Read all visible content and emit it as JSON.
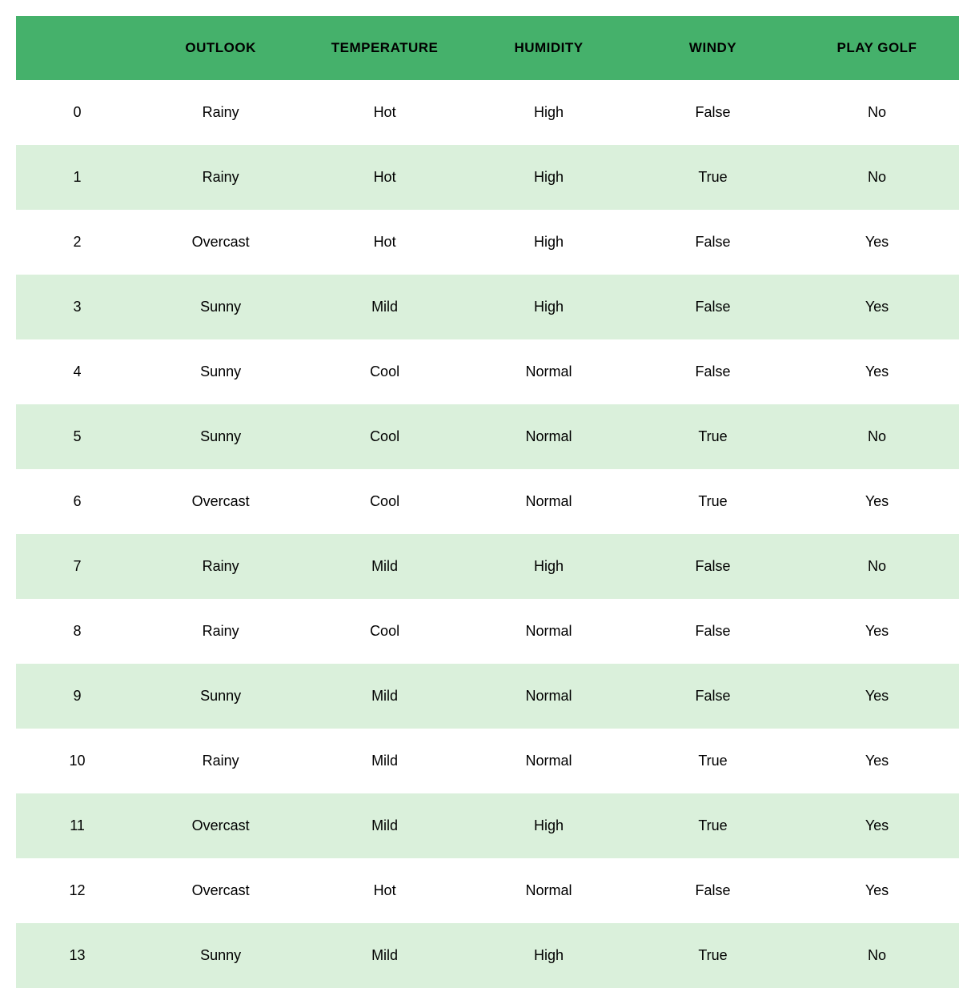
{
  "table": {
    "type": "table",
    "header_background_color": "#45b16b",
    "header_text_color": "#000000",
    "header_font_size": 17,
    "header_font_weight": "bold",
    "body_font_size": 18,
    "body_text_color": "#000000",
    "row_even_background": "#ffffff",
    "row_odd_background": "#daf0db",
    "row_padding_vertical": 30,
    "columns": [
      "",
      "OUTLOOK",
      "TEMPERATURE",
      "HUMIDITY",
      "WINDY",
      "PLAY GOLF"
    ],
    "rows": [
      [
        "0",
        "Rainy",
        "Hot",
        "High",
        "False",
        "No"
      ],
      [
        "1",
        "Rainy",
        "Hot",
        "High",
        "True",
        "No"
      ],
      [
        "2",
        "Overcast",
        "Hot",
        "High",
        "False",
        "Yes"
      ],
      [
        "3",
        "Sunny",
        "Mild",
        "High",
        "False",
        "Yes"
      ],
      [
        "4",
        "Sunny",
        "Cool",
        "Normal",
        "False",
        "Yes"
      ],
      [
        "5",
        "Sunny",
        "Cool",
        "Normal",
        "True",
        "No"
      ],
      [
        "6",
        "Overcast",
        "Cool",
        "Normal",
        "True",
        "Yes"
      ],
      [
        "7",
        "Rainy",
        "Mild",
        "High",
        "False",
        "No"
      ],
      [
        "8",
        "Rainy",
        "Cool",
        "Normal",
        "False",
        "Yes"
      ],
      [
        "9",
        "Sunny",
        "Mild",
        "Normal",
        "False",
        "Yes"
      ],
      [
        "10",
        "Rainy",
        "Mild",
        "Normal",
        "True",
        "Yes"
      ],
      [
        "11",
        "Overcast",
        "Mild",
        "High",
        "True",
        "Yes"
      ],
      [
        "12",
        "Overcast",
        "Hot",
        "Normal",
        "False",
        "Yes"
      ],
      [
        "13",
        "Sunny",
        "Mild",
        "High",
        "True",
        "No"
      ]
    ]
  }
}
